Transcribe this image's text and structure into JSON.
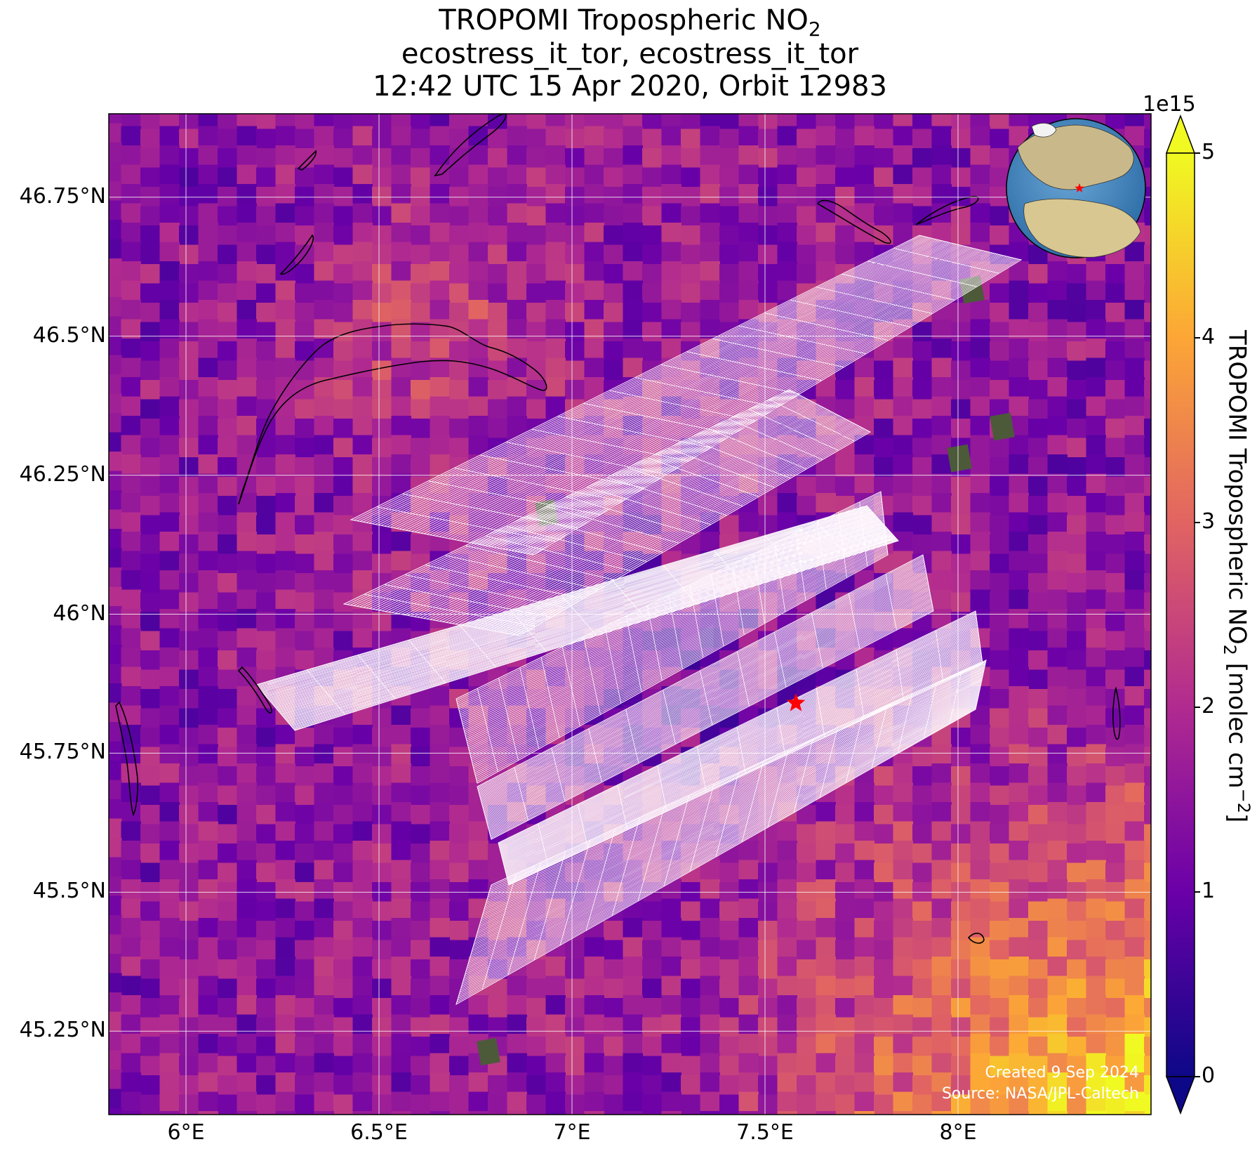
{
  "title": {
    "line1": "TROPOMI Tropospheric NO",
    "line1_sub": "2",
    "line2": "ecostress_it_tor, ecostress_it_tor",
    "line3": "12:42 UTC 15 Apr 2020, Orbit 12983"
  },
  "axes": {
    "lon_labels": [
      "6°E",
      "6.5°E",
      "7°E",
      "7.5°E",
      "8°E"
    ],
    "lon_values": [
      6.0,
      6.5,
      7.0,
      7.5,
      8.0
    ],
    "lat_labels": [
      "46.75°N",
      "46.5°N",
      "46.25°N",
      "46°N",
      "45.75°N",
      "45.5°N",
      "45.25°N"
    ],
    "lat_values": [
      46.75,
      46.5,
      46.25,
      46.0,
      45.75,
      45.5,
      45.25
    ],
    "lon_range": [
      5.8,
      8.5
    ],
    "lat_range": [
      45.1,
      46.9
    ],
    "grid": true
  },
  "colorbar": {
    "exponent_label": "1e15",
    "ticks": [
      "0",
      "1",
      "2",
      "3",
      "4",
      "5"
    ],
    "tick_values": [
      0,
      1,
      2,
      3,
      4,
      5
    ],
    "range": [
      0,
      5
    ],
    "colormap": "plasma",
    "label_main": "TROPOMI Tropospheric NO",
    "label_sub": "2",
    "label_units": " [molec cm",
    "label_exp": "−2",
    "label_end": "]"
  },
  "marker": {
    "lon": 7.58,
    "lat": 45.84,
    "symbol": "star",
    "color": "#ff0000"
  },
  "inset_globe": {
    "marker_color": "#ff0000",
    "ocean_color": "#4a8fc4",
    "land_color": "#c9b98a"
  },
  "credits": {
    "created": "Created 9 Sep 2024",
    "source": "Source: NASA/JPL-Caltech"
  },
  "colors": {
    "grid": "#ffffff",
    "swath": "#ffffff",
    "coastline": "#000000"
  }
}
